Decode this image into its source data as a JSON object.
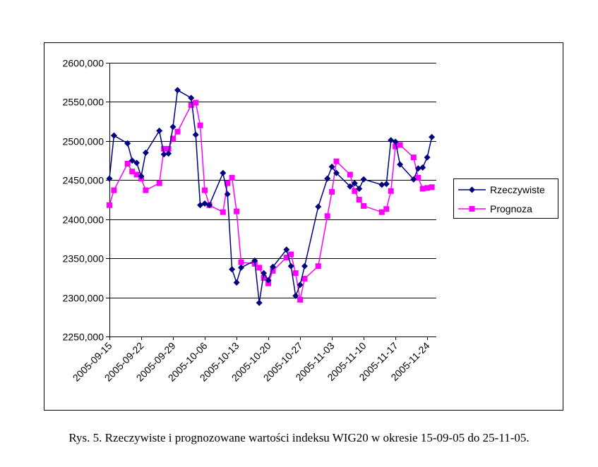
{
  "caption": "Rys. 5. Rzeczywiste i prognozowane wartości indeksu WIG20 w okresie 15-09-05 do 25-11-05.",
  "chart_data": {
    "type": "line",
    "title": "",
    "xlabel": "",
    "ylabel": "",
    "ylim": [
      2250,
      2600
    ],
    "yticks": [
      "2250,000",
      "2300,000",
      "2350,000",
      "2400,000",
      "2450,000",
      "2500,000",
      "2550,000",
      "2600,000"
    ],
    "ytick_values": [
      2250,
      2300,
      2350,
      2400,
      2450,
      2500,
      2550,
      2600
    ],
    "xlim": [
      "2005-09-15",
      "2005-11-26"
    ],
    "xticks": [
      "2005-09-15",
      "2005-09-22",
      "2005-09-29",
      "2005-10-06",
      "2005-10-13",
      "2005-10-20",
      "2005-10-27",
      "2005-11-03",
      "2005-11-10",
      "2005-11-17",
      "2005-11-24"
    ],
    "grid": "horizontal",
    "legend": "right",
    "colors": {
      "actual": "#000080",
      "forecast": "#ff00ff"
    },
    "series": [
      {
        "name": "Rzeczywiste",
        "marker": "diamond",
        "points": [
          [
            "2005-09-15",
            2452
          ],
          [
            "2005-09-16",
            2507
          ],
          [
            "2005-09-19",
            2497
          ],
          [
            "2005-09-20",
            2475
          ],
          [
            "2005-09-21",
            2472
          ],
          [
            "2005-09-22",
            2455
          ],
          [
            "2005-09-23",
            2485
          ],
          [
            "2005-09-26",
            2513
          ],
          [
            "2005-09-27",
            2483
          ],
          [
            "2005-09-28",
            2484
          ],
          [
            "2005-09-29",
            2518
          ],
          [
            "2005-09-30",
            2565
          ],
          [
            "2005-10-03",
            2555
          ],
          [
            "2005-10-04",
            2508
          ],
          [
            "2005-10-05",
            2418
          ],
          [
            "2005-10-06",
            2420
          ],
          [
            "2005-10-07",
            2418
          ],
          [
            "2005-10-10",
            2459
          ],
          [
            "2005-10-11",
            2432
          ],
          [
            "2005-10-12",
            2336
          ],
          [
            "2005-10-13",
            2319
          ],
          [
            "2005-10-14",
            2338
          ],
          [
            "2005-10-17",
            2347
          ],
          [
            "2005-10-18",
            2293
          ],
          [
            "2005-10-19",
            2331
          ],
          [
            "2005-10-20",
            2322
          ],
          [
            "2005-10-21",
            2339
          ],
          [
            "2005-10-24",
            2361
          ],
          [
            "2005-10-25",
            2340
          ],
          [
            "2005-10-26",
            2302
          ],
          [
            "2005-10-27",
            2316
          ],
          [
            "2005-10-28",
            2340
          ],
          [
            "2005-10-31",
            2416
          ],
          [
            "2005-11-02",
            2452
          ],
          [
            "2005-11-03",
            2467
          ],
          [
            "2005-11-04",
            2459
          ],
          [
            "2005-11-07",
            2442
          ],
          [
            "2005-11-08",
            2446
          ],
          [
            "2005-11-09",
            2439
          ],
          [
            "2005-11-10",
            2451
          ],
          [
            "2005-11-14",
            2444
          ],
          [
            "2005-11-15",
            2445
          ],
          [
            "2005-11-16",
            2501
          ],
          [
            "2005-11-17",
            2499
          ],
          [
            "2005-11-18",
            2470
          ],
          [
            "2005-11-21",
            2451
          ],
          [
            "2005-11-22",
            2465
          ],
          [
            "2005-11-23",
            2466
          ],
          [
            "2005-11-24",
            2479
          ],
          [
            "2005-11-25",
            2505
          ]
        ]
      },
      {
        "name": "Prognoza",
        "marker": "square",
        "points": [
          [
            "2005-09-15",
            2418
          ],
          [
            "2005-09-16",
            2437
          ],
          [
            "2005-09-19",
            2471
          ],
          [
            "2005-09-20",
            2461
          ],
          [
            "2005-09-21",
            2457
          ],
          [
            "2005-09-22",
            2452
          ],
          [
            "2005-09-23",
            2437
          ],
          [
            "2005-09-26",
            2446
          ],
          [
            "2005-09-27",
            2490
          ],
          [
            "2005-09-28",
            2490
          ],
          [
            "2005-09-29",
            2503
          ],
          [
            "2005-09-30",
            2512
          ],
          [
            "2005-10-03",
            2546
          ],
          [
            "2005-10-04",
            2549
          ],
          [
            "2005-10-05",
            2520
          ],
          [
            "2005-10-06",
            2437
          ],
          [
            "2005-10-07",
            2418
          ],
          [
            "2005-10-10",
            2409
          ],
          [
            "2005-10-11",
            2446
          ],
          [
            "2005-10-12",
            2453
          ],
          [
            "2005-10-13",
            2410
          ],
          [
            "2005-10-14",
            2345
          ],
          [
            "2005-10-17",
            2343
          ],
          [
            "2005-10-18",
            2338
          ],
          [
            "2005-10-19",
            2325
          ],
          [
            "2005-10-20",
            2318
          ],
          [
            "2005-10-21",
            2334
          ],
          [
            "2005-10-24",
            2351
          ],
          [
            "2005-10-25",
            2355
          ],
          [
            "2005-10-26",
            2331
          ],
          [
            "2005-10-27",
            2297
          ],
          [
            "2005-10-28",
            2324
          ],
          [
            "2005-10-31",
            2340
          ],
          [
            "2005-11-02",
            2404
          ],
          [
            "2005-11-03",
            2435
          ],
          [
            "2005-11-04",
            2474
          ],
          [
            "2005-11-07",
            2457
          ],
          [
            "2005-11-08",
            2436
          ],
          [
            "2005-11-09",
            2425
          ],
          [
            "2005-11-10",
            2417
          ],
          [
            "2005-11-14",
            2409
          ],
          [
            "2005-11-15",
            2413
          ],
          [
            "2005-11-16",
            2436
          ],
          [
            "2005-11-17",
            2493
          ],
          [
            "2005-11-18",
            2495
          ],
          [
            "2005-11-21",
            2479
          ],
          [
            "2005-11-22",
            2453
          ],
          [
            "2005-11-23",
            2439
          ],
          [
            "2005-11-24",
            2440
          ],
          [
            "2005-11-25",
            2441
          ]
        ]
      }
    ]
  }
}
